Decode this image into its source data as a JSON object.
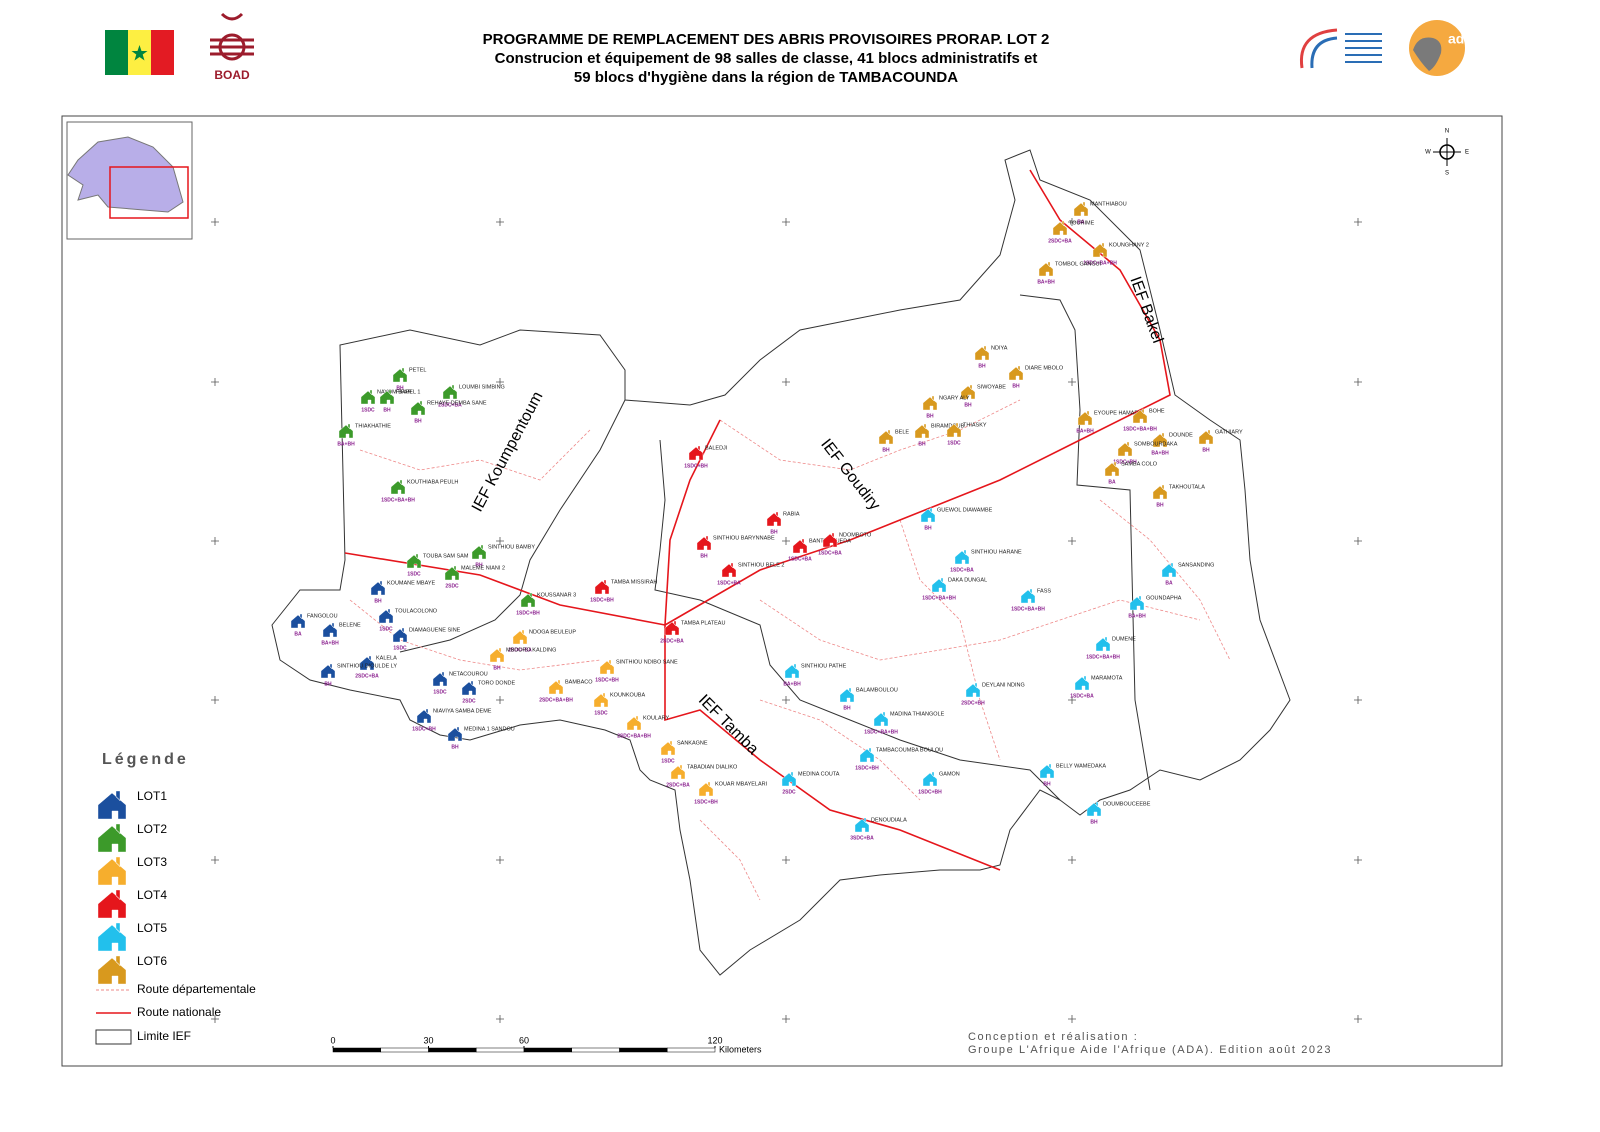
{
  "header": {
    "title": "PROGRAMME DE REMPLACEMENT DES ABRIS PROVISOIRES PRORAP. LOT 2",
    "subtitle_1": "Construcion et équipement de 98 salles de classe, 41 blocs administratifs et",
    "subtitle_2": "59 blocs d'hygiène dans la région de TAMBACOUNDA"
  },
  "logos": {
    "boad": "BOAD",
    "ada": "ada"
  },
  "compass": {
    "n": "N",
    "s": "S",
    "e": "E",
    "w": "W"
  },
  "ief_labels": [
    "IEF Koumpentoum",
    "IEF Goudiry",
    "IEF Bakel",
    "IEF Tamba"
  ],
  "legend": {
    "title": "Légende",
    "lots": [
      {
        "name": "LOT1",
        "color": "#1b4f9e"
      },
      {
        "name": "LOT2",
        "color": "#3c9a2a"
      },
      {
        "name": "LOT3",
        "color": "#f6ae2d"
      },
      {
        "name": "LOT4",
        "color": "#e5161c"
      },
      {
        "name": "LOT5",
        "color": "#22c0ec"
      },
      {
        "name": "LOT6",
        "color": "#d8991e"
      }
    ],
    "lines": [
      "Route départementale",
      "Route nationale",
      "Limite IEF"
    ]
  },
  "sites": [
    {
      "name": "PETEL",
      "lot": 2,
      "code": "BH"
    },
    {
      "name": "NAYOM BAPEL 1",
      "lot": 2,
      "code": "1SDC"
    },
    {
      "name": "FIFAR",
      "lot": 2,
      "code": "BH"
    },
    {
      "name": "LOUMBI SIMBING",
      "lot": 2,
      "code": "2SDC+BA"
    },
    {
      "name": "REHAYE DEMBA SANE",
      "lot": 2,
      "code": "BH"
    },
    {
      "name": "THIAKHATHIE",
      "lot": 2,
      "code": "BA+BH"
    },
    {
      "name": "KOUTHIABA PEULH",
      "lot": 2,
      "code": "1SDC+BA+BH"
    },
    {
      "name": "TOUBA SAM SAM",
      "lot": 2,
      "code": "1SDC"
    },
    {
      "name": "SINTHIOU BAMBY",
      "lot": 2,
      "code": "BH"
    },
    {
      "name": "MALEME NIANI 2",
      "lot": 2,
      "code": "2SDC"
    },
    {
      "name": "KOUSSANAR 3",
      "lot": 2,
      "code": "1SDC+BH"
    },
    {
      "name": "FANGOLOU",
      "lot": 1,
      "code": "BA"
    },
    {
      "name": "BELENE",
      "lot": 1,
      "code": "BA+BH"
    },
    {
      "name": "KOUMANE MBAYE",
      "lot": 1,
      "code": "BH"
    },
    {
      "name": "TOULACOLONO",
      "lot": 1,
      "code": "1SDC"
    },
    {
      "name": "DIAMAGUENE SINE",
      "lot": 1,
      "code": "1SDC"
    },
    {
      "name": "KALELA",
      "lot": 1,
      "code": "2SDC+BA"
    },
    {
      "name": "SINTHIOU DIOULDE LY",
      "lot": 1,
      "code": "BH"
    },
    {
      "name": "NETACOUROU",
      "lot": 1,
      "code": "1SDC"
    },
    {
      "name": "TORO DONDE",
      "lot": 1,
      "code": "2SDC"
    },
    {
      "name": "NIAVIYA SAMBA DEME",
      "lot": 1,
      "code": "1SDC+BH"
    },
    {
      "name": "MEDINA 1 SANDOU",
      "lot": 1,
      "code": "BH"
    },
    {
      "name": "NDOGA BEULEUP",
      "lot": 3,
      "code": "2SDC+BA"
    },
    {
      "name": "MBOURO KALDING",
      "lot": 3,
      "code": "BH"
    },
    {
      "name": "BAMBACO",
      "lot": 3,
      "code": "2SDC+BA+BH"
    },
    {
      "name": "SINTHIOU NDIBO SANE",
      "lot": 3,
      "code": "1SDC+BH"
    },
    {
      "name": "KOUNKOUBA",
      "lot": 3,
      "code": "1SDC"
    },
    {
      "name": "KOULARY",
      "lot": 3,
      "code": "2SDC+BA+BH"
    },
    {
      "name": "SANKAGNE",
      "lot": 3,
      "code": "1SDC"
    },
    {
      "name": "TABADIAN DIALIKO",
      "lot": 3,
      "code": "2SDC+BA"
    },
    {
      "name": "KOUAR MBAYELARI",
      "lot": 3,
      "code": "1SDC+BH"
    },
    {
      "name": "BALEDJI",
      "lot": 4,
      "code": "1SDC+BH"
    },
    {
      "name": "RABIA",
      "lot": 4,
      "code": "BH"
    },
    {
      "name": "BANTHAGUEDA",
      "lot": 4,
      "code": "1SDC+BA"
    },
    {
      "name": "NDOMBOTO",
      "lot": 4,
      "code": "1SDC+BA"
    },
    {
      "name": "SINTHIOU BARYNNABE",
      "lot": 4,
      "code": "BH"
    },
    {
      "name": "SINTHIOU BELE 2",
      "lot": 4,
      "code": "1SDC+BA"
    },
    {
      "name": "TAMBA MISSIRAH",
      "lot": 4,
      "code": "1SDC+BH"
    },
    {
      "name": "TAMBA PLATEAU",
      "lot": 4,
      "code": "2SDC+BA"
    },
    {
      "name": "GUEWOL DIAWAMBE",
      "lot": 5,
      "code": "BH"
    },
    {
      "name": "SINTHIOU HARANE",
      "lot": 5,
      "code": "1SDC+BA"
    },
    {
      "name": "DAKA DUNGAL",
      "lot": 5,
      "code": "1SDC+BA+BH"
    },
    {
      "name": "FASS",
      "lot": 5,
      "code": "1SDC+BA+BH"
    },
    {
      "name": "SANSANDING",
      "lot": 5,
      "code": "BA"
    },
    {
      "name": "GOUNDAPHA",
      "lot": 5,
      "code": "BA+BH"
    },
    {
      "name": "DUMENE",
      "lot": 5,
      "code": "1SDC+BA+BH"
    },
    {
      "name": "MARAMOTA",
      "lot": 5,
      "code": "1SDC+BA"
    },
    {
      "name": "DEYLANI NDING",
      "lot": 5,
      "code": "2SDC+BH"
    },
    {
      "name": "SINTHIOU PATHE",
      "lot": 5,
      "code": "BA+BH"
    },
    {
      "name": "BALAMBOULOU",
      "lot": 5,
      "code": "BH"
    },
    {
      "name": "MADINA THIANGOLE",
      "lot": 5,
      "code": "1SDC+BA+BH"
    },
    {
      "name": "TAMBACOUMBA BOULOU",
      "lot": 5,
      "code": "1SDC+BH"
    },
    {
      "name": "GAMON",
      "lot": 5,
      "code": "1SDC+BH"
    },
    {
      "name": "MEDINA COUTA",
      "lot": 5,
      "code": "2SDC"
    },
    {
      "name": "DENOUDIALA",
      "lot": 5,
      "code": "3SDC+BA"
    },
    {
      "name": "BELLY WAMEDAKA",
      "lot": 5,
      "code": "BH"
    },
    {
      "name": "DOUMBOUCEEBE",
      "lot": 5,
      "code": "BH"
    },
    {
      "name": "MANTHIABOU",
      "lot": 6,
      "code": "BA"
    },
    {
      "name": "TOURIME",
      "lot": 6,
      "code": "2SDC+BA"
    },
    {
      "name": "KOUNGHANY 2",
      "lot": 6,
      "code": "1SDC+BA+BH"
    },
    {
      "name": "TOMBOL GANGUI",
      "lot": 6,
      "code": "BA+BH"
    },
    {
      "name": "NDIYA",
      "lot": 6,
      "code": "BH"
    },
    {
      "name": "DIARE MBOLO",
      "lot": 6,
      "code": "BH"
    },
    {
      "name": "SIWOYABE",
      "lot": 6,
      "code": "BH"
    },
    {
      "name": "NGARY ALY",
      "lot": 6,
      "code": "BH"
    },
    {
      "name": "BIRAMDOUB",
      "lot": 6,
      "code": "BH"
    },
    {
      "name": "BELE",
      "lot": 6,
      "code": "BH"
    },
    {
      "name": "THIASKY",
      "lot": 6,
      "code": "1SDC"
    },
    {
      "name": "EYOUPE HAMADY",
      "lot": 6,
      "code": "BA+BH"
    },
    {
      "name": "BOHE",
      "lot": 6,
      "code": "1SDC+BA+BH"
    },
    {
      "name": "DOUNDE",
      "lot": 6,
      "code": "BA+BH"
    },
    {
      "name": "GATHIARY",
      "lot": 6,
      "code": "BH"
    },
    {
      "name": "SOMBOURDAKA",
      "lot": 6,
      "code": "1SDC+BH"
    },
    {
      "name": "SAMBA COLO",
      "lot": 6,
      "code": "BA"
    },
    {
      "name": "TAKHOUTALA",
      "lot": 6,
      "code": "BH"
    }
  ],
  "scale": {
    "ticks": [
      0,
      30,
      60,
      120
    ],
    "unit": "Kilometers"
  },
  "credits": [
    "Conception et réalisation :",
    "Groupe L'Afrique Aide l'Afrique (ADA). Edition août 2023"
  ]
}
